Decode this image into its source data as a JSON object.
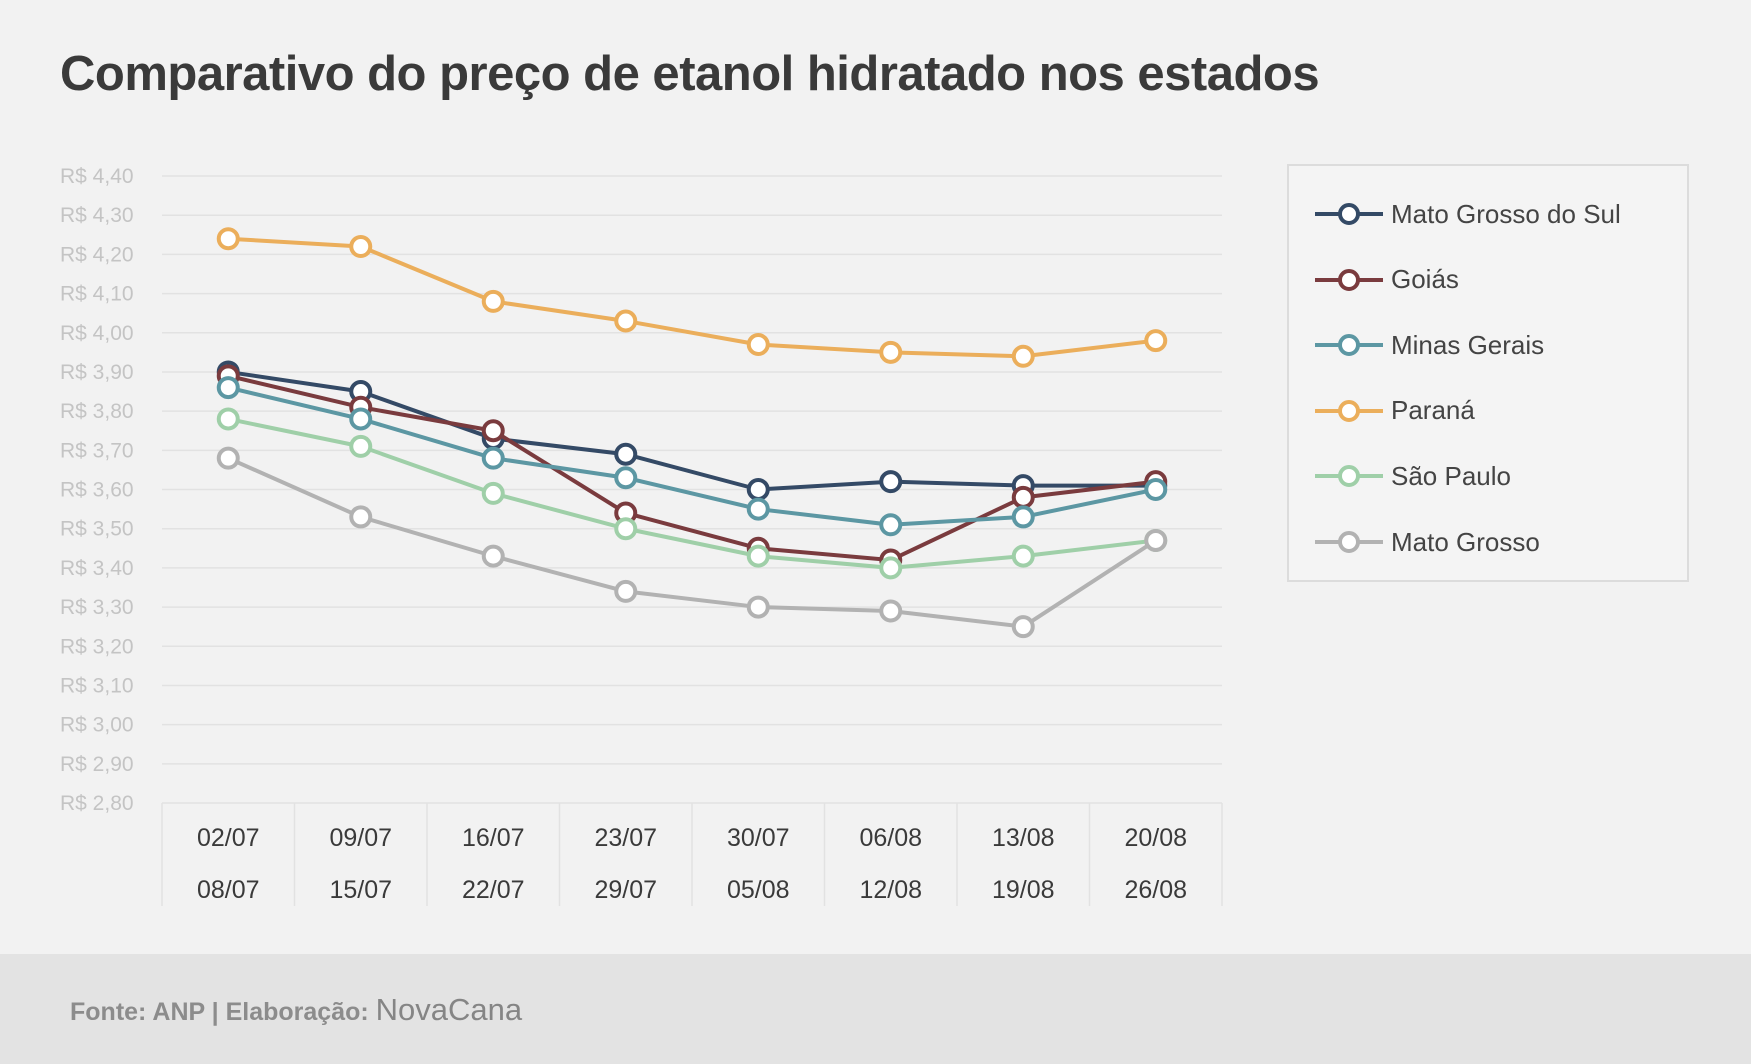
{
  "title": "Comparativo do preço de etanol hidratado nos estados",
  "footer": {
    "source": "Fonte: ANP | Elaboração: ",
    "brand": "NovaCana"
  },
  "chart_data": {
    "type": "line",
    "title": "Comparativo do preço de etanol hidratado nos estados",
    "categories": [
      [
        "02/07",
        "08/07"
      ],
      [
        "09/07",
        "15/07"
      ],
      [
        "16/07",
        "22/07"
      ],
      [
        "23/07",
        "29/07"
      ],
      [
        "30/07",
        "05/08"
      ],
      [
        "06/08",
        "12/08"
      ],
      [
        "13/08",
        "19/08"
      ],
      [
        "20/08",
        "26/08"
      ]
    ],
    "ylim": [
      2.8,
      4.4
    ],
    "yticks": [
      "R$ 4,40",
      "R$ 4,30",
      "R$ 4,20",
      "R$ 4,10",
      "R$ 4,00",
      "R$ 3,90",
      "R$ 3,80",
      "R$ 3,70",
      "R$ 3,60",
      "R$ 3,50",
      "R$ 3,40",
      "R$ 3,30",
      "R$ 3,20",
      "R$ 3,10",
      "R$ 3,00",
      "R$ 2,90",
      "R$ 2,80"
    ],
    "grid": true,
    "legend_position": "right",
    "series": [
      {
        "name": "Mato Grosso do Sul",
        "color": "#344a66",
        "values": [
          3.9,
          3.85,
          3.73,
          3.69,
          3.6,
          3.62,
          3.61,
          3.61
        ]
      },
      {
        "name": "Goiás",
        "color": "#7a3b3e",
        "values": [
          3.89,
          3.81,
          3.75,
          3.54,
          3.45,
          3.42,
          3.58,
          3.62
        ]
      },
      {
        "name": "Minas Gerais",
        "color": "#5c97a3",
        "values": [
          3.86,
          3.78,
          3.68,
          3.63,
          3.55,
          3.51,
          3.53,
          3.6
        ]
      },
      {
        "name": "Paraná",
        "color": "#ebae5b",
        "values": [
          4.24,
          4.22,
          4.08,
          4.03,
          3.97,
          3.95,
          3.94,
          3.98
        ]
      },
      {
        "name": "São Paulo",
        "color": "#9fcfa8",
        "values": [
          3.78,
          3.71,
          3.59,
          3.5,
          3.43,
          3.4,
          3.43,
          3.47
        ]
      },
      {
        "name": "Mato Grosso",
        "color": "#b2b2b2",
        "values": [
          3.68,
          3.53,
          3.43,
          3.34,
          3.3,
          3.29,
          3.25,
          3.47
        ]
      }
    ]
  }
}
